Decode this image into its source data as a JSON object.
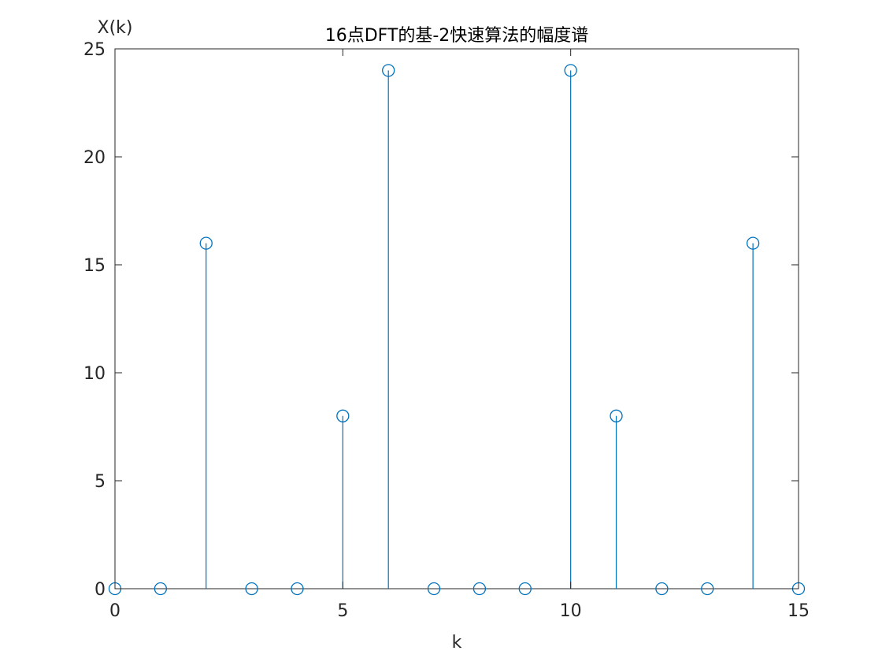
{
  "chart_data": {
    "type": "stem",
    "title": "16点DFT的基-2快速算法的幅度谱",
    "xlabel": "k",
    "ylabel": "X(k)",
    "xlim": [
      0,
      15
    ],
    "ylim": [
      0,
      25
    ],
    "xticks": [
      0,
      5,
      10,
      15
    ],
    "yticks": [
      0,
      5,
      10,
      15,
      20,
      25
    ],
    "grid": false,
    "series_color": "#0072BD",
    "x": [
      0,
      1,
      2,
      3,
      4,
      5,
      6,
      7,
      8,
      9,
      10,
      11,
      12,
      13,
      14,
      15
    ],
    "values": [
      0,
      0,
      16,
      0,
      0,
      8,
      24,
      0,
      0,
      0,
      24,
      8,
      0,
      0,
      16,
      0
    ]
  }
}
